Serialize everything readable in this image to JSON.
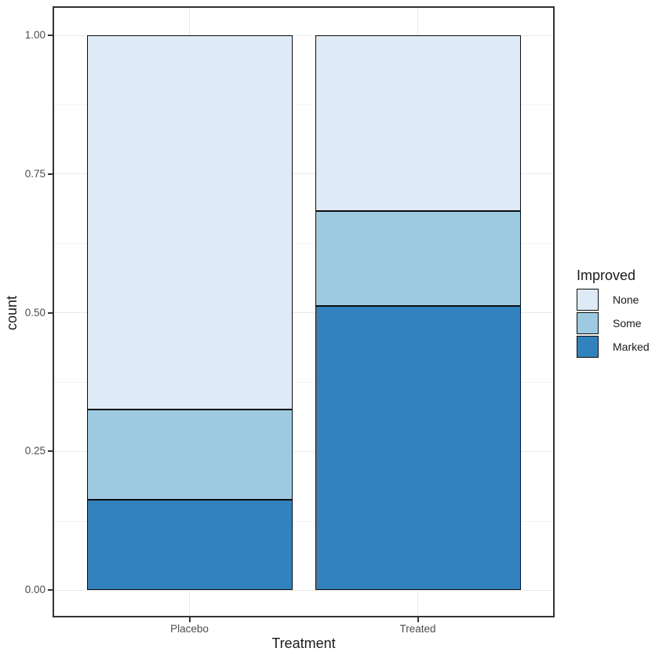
{
  "chart_data": {
    "type": "bar",
    "variant": "stacked-normalized",
    "title": "",
    "xlabel": "Treatment",
    "ylabel": "count",
    "categories": [
      "Placebo",
      "Treated"
    ],
    "series": [
      {
        "name": "None",
        "color": "#DEEBF7",
        "values": [
          0.6744,
          0.3171
        ]
      },
      {
        "name": "Some",
        "color": "#9ECAE1",
        "values": [
          0.1628,
          0.1707
        ]
      },
      {
        "name": "Marked",
        "color": "#3182BD",
        "values": [
          0.1628,
          0.5122
        ]
      }
    ],
    "stack_order_top_to_bottom": [
      "None",
      "Some",
      "Marked"
    ],
    "ylim": [
      0,
      1
    ],
    "y_ticks": {
      "values": [
        0,
        0.25,
        0.5,
        0.75,
        1
      ],
      "labels": [
        "0.00",
        "0.25",
        "0.50",
        "0.75",
        "1.00"
      ]
    },
    "y_minor_ticks": [
      0.125,
      0.375,
      0.625,
      0.875
    ],
    "grid": "horizontal major+minor, vertical major at category centers",
    "legend": {
      "title": "Improved",
      "position": "right",
      "entries": [
        "None",
        "Some",
        "Marked"
      ]
    },
    "theme": {
      "panel_border_color": "#333333",
      "bar_outline_color": "#0D0D0D",
      "grid_major_color": "#E9E9E9",
      "grid_minor_color": "#F3F3F3",
      "tick_label_color": "#4D4D4D",
      "axis_title_color": "#1A1A1A",
      "background_color": "#FFFFFF"
    }
  }
}
